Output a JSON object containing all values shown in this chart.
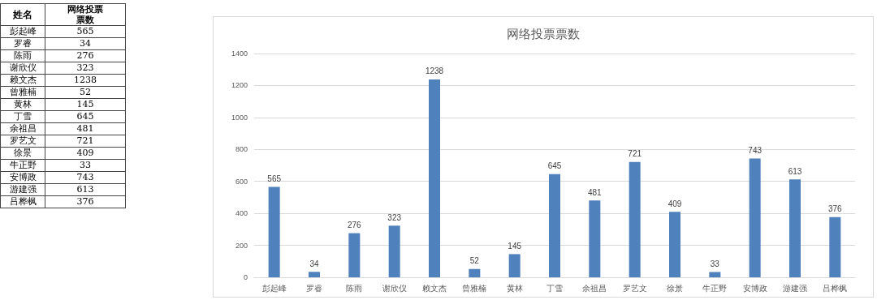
{
  "chart_data": [
    {
      "type": "other",
      "annotations": [
        "姓名",
        "网络投票票数"
      ],
      "categories": [
        "彭起峰",
        "罗睿",
        "陈雨",
        "谢欣仪",
        "赖文杰",
        "曾雅楠",
        "黄林",
        "丁雪",
        "余祖昌",
        "罗艺文",
        "徐景",
        "牛正野",
        "安博政",
        "游建强",
        "吕桦枫"
      ],
      "values": [
        565,
        34,
        276,
        323,
        1238,
        52,
        145,
        645,
        481,
        721,
        409,
        33,
        743,
        613,
        376
      ],
      "data_labels": true
    },
    {
      "type": "bar",
      "title": "网络投票票数",
      "categories": [
        "彭起峰",
        "罗睿",
        "陈雨",
        "谢欣仪",
        "赖文杰",
        "曾雅楠",
        "黄林",
        "丁雪",
        "余祖昌",
        "罗艺文",
        "徐景",
        "牛正野",
        "安博政",
        "游建强",
        "吕桦枫"
      ],
      "values": [
        565,
        34,
        276,
        323,
        1238,
        52,
        145,
        645,
        481,
        721,
        409,
        33,
        743,
        613,
        376
      ],
      "color": "#4f81bd",
      "ylim": [
        0,
        1400
      ],
      "yticks": [
        0,
        200,
        400,
        600,
        800,
        1000,
        1200,
        1400
      ],
      "grid": "y",
      "data_labels": true
    }
  ]
}
